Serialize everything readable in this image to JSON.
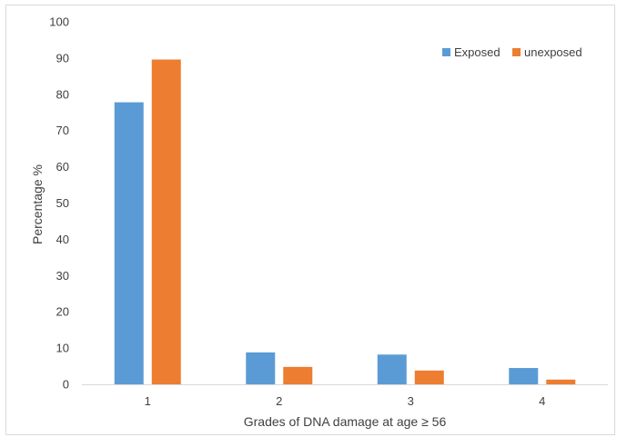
{
  "chart_data": {
    "type": "bar",
    "title": "",
    "xlabel": "Grades  of DNA damage at age ≥ 56",
    "ylabel": "Percentage %",
    "categories": [
      "1",
      "2",
      "3",
      "4"
    ],
    "ylim": [
      0,
      100
    ],
    "yticks": [
      "0",
      "10",
      "20",
      "30",
      "40",
      "50",
      "60",
      "70",
      "80",
      "90",
      "100"
    ],
    "grid": false,
    "legend_position": "top-right",
    "series": [
      {
        "name": "Exposed",
        "color": "#5b9bd5",
        "values": [
          77.8,
          8.8,
          8.2,
          4.5
        ]
      },
      {
        "name": "unexposed",
        "color": "#ed7d31",
        "values": [
          89.6,
          4.8,
          3.8,
          1.3
        ]
      }
    ]
  }
}
